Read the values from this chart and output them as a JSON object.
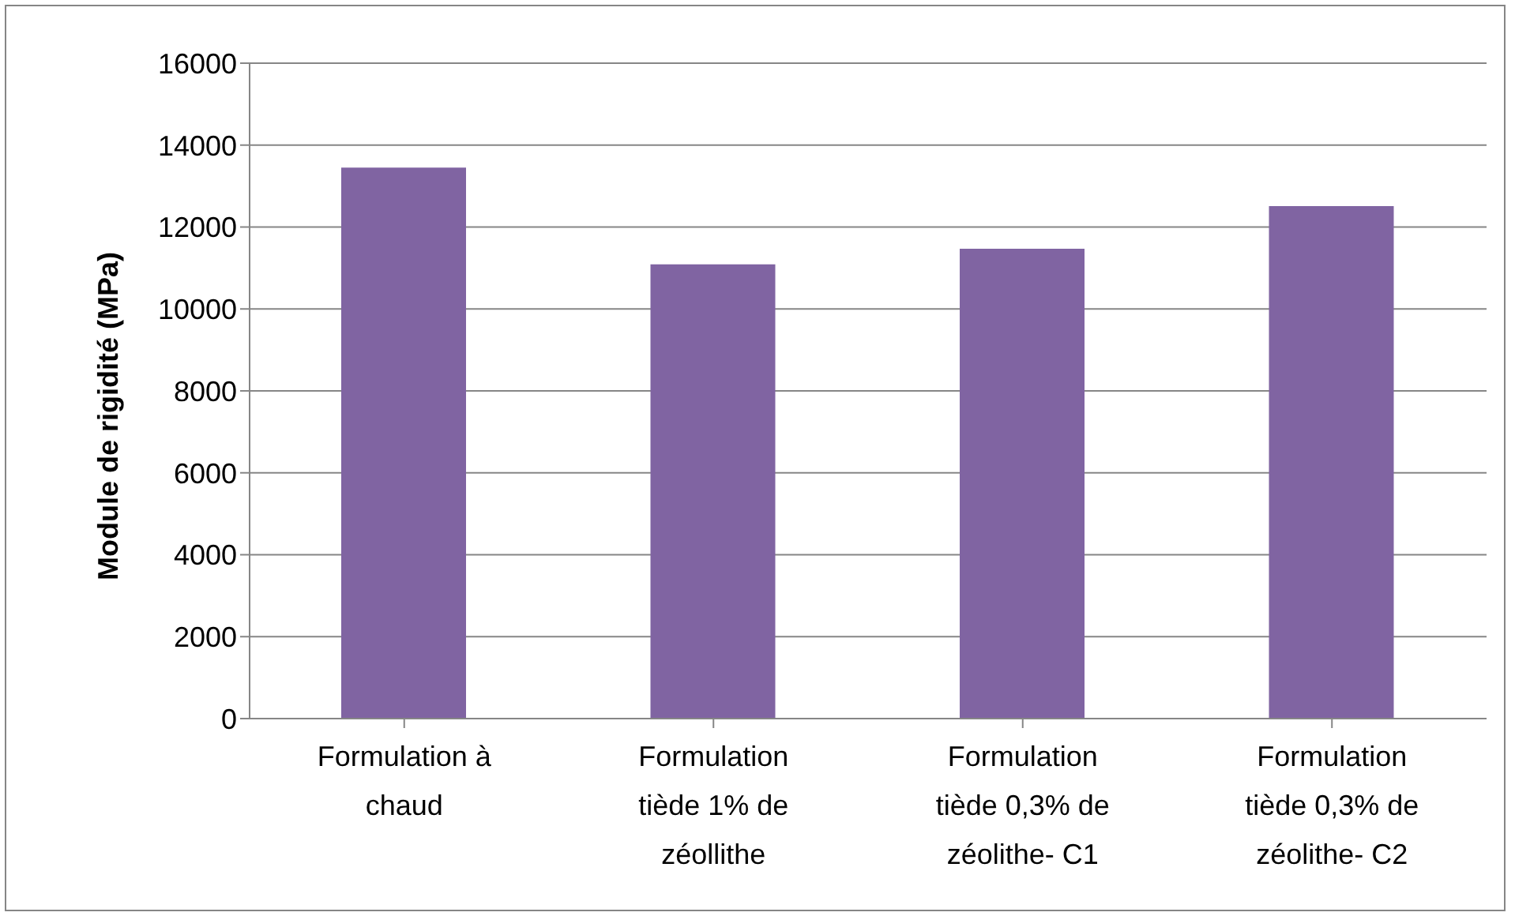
{
  "chart_data": {
    "type": "bar",
    "ylabel": "Module de rigidité (MPa)",
    "categories": [
      "Formulation à chaud",
      "Formulation tiède 1% de zéollithe",
      "Formulation tiède 0,3% de zéolithe- C1",
      "Formulation tiède 0,3% de zéolithe- C2"
    ],
    "values": [
      13450,
      11090,
      11470,
      12510
    ],
    "color": "#8064a2",
    "ylim": [
      0,
      16000
    ],
    "yticks": [
      0,
      2000,
      4000,
      6000,
      8000,
      10000,
      12000,
      14000,
      16000
    ],
    "grid": "y",
    "legend": false
  }
}
